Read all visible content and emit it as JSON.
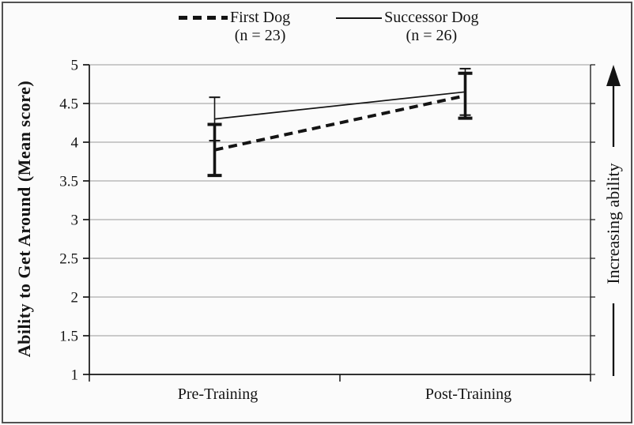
{
  "figure": {
    "background": "#fbfbfb",
    "frame_color": "#525252",
    "ink": "#141414",
    "grid_color": "#9a9a9a"
  },
  "legend": {
    "items": [
      {
        "name": "First Dog",
        "n": "(n = 23)",
        "line_style": "dashed"
      },
      {
        "name": "Successor Dog",
        "n": "(n = 26)",
        "line_style": "solid"
      }
    ]
  },
  "axes": {
    "y_title": "Ability to Get Around (Mean score)",
    "right_annotation": "Increasing ability"
  },
  "chart_data": {
    "type": "line",
    "title": "",
    "categories": [
      "Pre-Training",
      "Post-Training"
    ],
    "series": [
      {
        "name": "First Dog",
        "n_label": "(n = 23)",
        "style": "bold-dashed",
        "values": [
          3.9,
          4.6
        ],
        "error": [
          0.33,
          0.29
        ]
      },
      {
        "name": "Successor Dog",
        "n_label": "(n = 26)",
        "style": "thin-solid",
        "values": [
          4.3,
          4.65
        ],
        "error": [
          0.28,
          0.3
        ]
      }
    ],
    "xlabel": "",
    "ylabel": "Ability to Get Around (Mean score)",
    "ylim": [
      1,
      5
    ],
    "yticks": [
      1,
      1.5,
      2,
      2.5,
      3,
      3.5,
      4,
      4.5,
      5
    ],
    "grid": true,
    "legend_position": "top",
    "right_annotation": "Increasing ability (arrow up)"
  }
}
